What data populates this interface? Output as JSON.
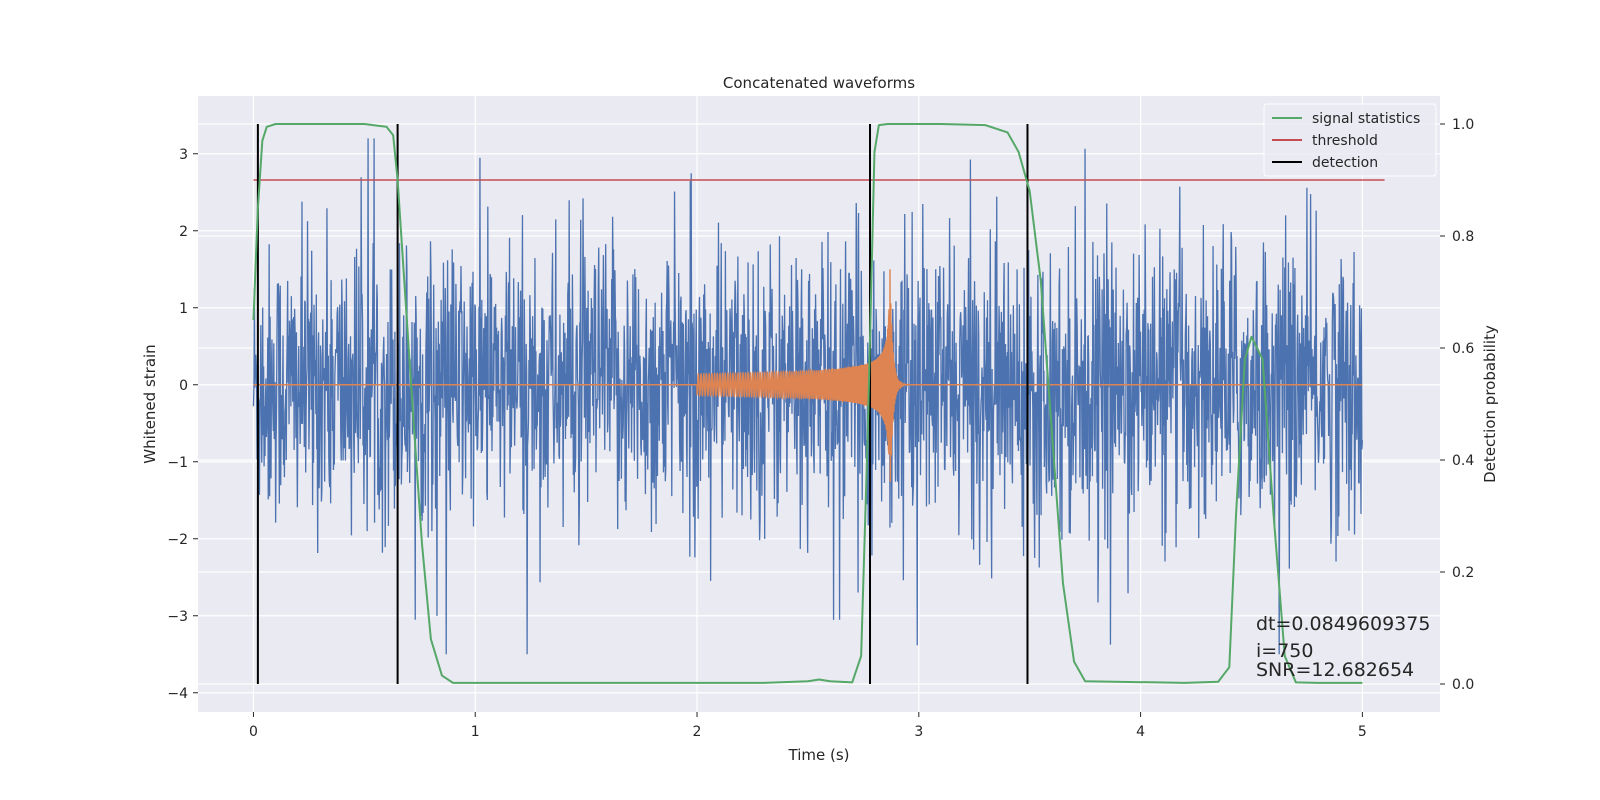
{
  "chart_data": {
    "type": "line",
    "title": "Concatenated waveforms",
    "xlabel": "Time (s)",
    "ylabel": "Whitened strain",
    "y2label": "Detection probability",
    "xlim": [
      -0.25,
      5.35
    ],
    "ylim": [
      -4.25,
      3.75
    ],
    "y2lim": [
      -0.05,
      1.05
    ],
    "xticks": [
      0,
      1,
      2,
      3,
      4,
      5
    ],
    "yticks": [
      -4,
      -3,
      -2,
      -1,
      0,
      1,
      2,
      3
    ],
    "y2ticks": [
      0.0,
      0.2,
      0.4,
      0.6,
      0.8,
      1.0
    ],
    "grid": true,
    "legend": {
      "position": "upper right",
      "entries": [
        {
          "name": "signal statistics",
          "color": "#55a868"
        },
        {
          "name": "threshold",
          "color": "#c44e52"
        },
        {
          "name": "detection",
          "color": "#000000"
        }
      ]
    },
    "colors": {
      "strain": "#4c72b0",
      "template": "#dd8452",
      "statistic": "#55a868",
      "threshold": "#c44e52",
      "detection": "#000000",
      "background": "#eaeaf2"
    },
    "strain": {
      "x_range": [
        0,
        5
      ],
      "approx_envelope": [
        -3.5,
        3.2
      ]
    },
    "template": {
      "start": 2.0,
      "merger": 2.87,
      "end": 3.0,
      "peak_amplitude": 1.5
    },
    "statistic": {
      "x": [
        0.0,
        0.02,
        0.04,
        0.06,
        0.1,
        0.15,
        0.3,
        0.5,
        0.6,
        0.63,
        0.65,
        0.68,
        0.72,
        0.76,
        0.8,
        0.85,
        0.9,
        1.5,
        2.3,
        2.5,
        2.55,
        2.6,
        2.7,
        2.74,
        2.77,
        2.8,
        2.82,
        2.86,
        2.9,
        3.1,
        3.3,
        3.4,
        3.45,
        3.5,
        3.55,
        3.6,
        3.65,
        3.7,
        3.75,
        4.2,
        4.35,
        4.4,
        4.43,
        4.47,
        4.5,
        4.55,
        4.6,
        4.65,
        4.7,
        4.8,
        5.0
      ],
      "y": [
        0.65,
        0.85,
        0.97,
        0.995,
        1.0,
        1.0,
        1.0,
        1.0,
        0.995,
        0.98,
        0.9,
        0.72,
        0.48,
        0.25,
        0.08,
        0.015,
        0.002,
        0.002,
        0.002,
        0.005,
        0.008,
        0.005,
        0.003,
        0.05,
        0.45,
        0.95,
        0.998,
        1.0,
        1.0,
        1.0,
        0.998,
        0.985,
        0.95,
        0.88,
        0.72,
        0.45,
        0.18,
        0.04,
        0.005,
        0.002,
        0.004,
        0.03,
        0.3,
        0.58,
        0.62,
        0.58,
        0.3,
        0.05,
        0.003,
        0.002,
        0.002
      ]
    },
    "threshold": {
      "value": 0.9,
      "x_range": [
        0,
        5.1
      ]
    },
    "detections": [
      0.02,
      0.65,
      2.78,
      3.49
    ],
    "annotations": [
      "dt=0.0849609375",
      " i=750",
      "SNR=12.682654"
    ]
  }
}
